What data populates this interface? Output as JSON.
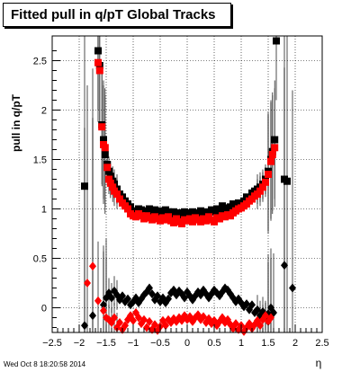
{
  "chart_data": {
    "type": "scatter",
    "title": "Fitted pull in q/pT  Global Tracks",
    "xlabel": "η",
    "ylabel": "pull in q/pT",
    "xlim": [
      -2.5,
      2.5
    ],
    "ylim": [
      -0.25,
      2.75
    ],
    "grid": true,
    "x_ticks": [
      -2.5,
      -2,
      -1.5,
      -1,
      -0.5,
      0,
      0.5,
      1,
      1.5,
      2,
      2.5
    ],
    "x_tick_labels": [
      "−2.5",
      "−2",
      "−1.5",
      "−1",
      "−0.5",
      "0",
      "0.5",
      "1",
      "1.5",
      "2",
      "2.5"
    ],
    "y_ticks": [
      0,
      0.5,
      1,
      1.5,
      2,
      2.5
    ],
    "y_tick_labels": [
      "0",
      "0.5",
      "1",
      "1.5",
      "2",
      "2.5"
    ],
    "series": [
      {
        "marker": "square",
        "color": "#000000",
        "points": [
          [
            -1.65,
            2.6
          ],
          [
            -1.62,
            2.45
          ],
          [
            -1.58,
            1.85
          ],
          [
            -1.55,
            1.7
          ],
          [
            -1.52,
            1.55
          ],
          [
            -1.48,
            1.45
          ],
          [
            -1.45,
            1.38
          ],
          [
            -1.42,
            1.33
          ],
          [
            -1.38,
            1.28
          ],
          [
            -1.35,
            1.25
          ],
          [
            -1.3,
            1.2
          ],
          [
            -1.25,
            1.15
          ],
          [
            -1.2,
            1.12
          ],
          [
            -1.15,
            1.08
          ],
          [
            -1.1,
            1.05
          ],
          [
            -1.05,
            1.02
          ],
          [
            -1.0,
            0.98
          ],
          [
            -0.95,
            0.97
          ],
          [
            -0.9,
            1.0
          ],
          [
            -0.85,
            0.99
          ],
          [
            -0.8,
            0.97
          ],
          [
            -0.75,
            0.98
          ],
          [
            -0.7,
            1.0
          ],
          [
            -0.65,
            0.96
          ],
          [
            -0.6,
            0.99
          ],
          [
            -0.55,
            0.95
          ],
          [
            -0.5,
            0.98
          ],
          [
            -0.45,
            0.96
          ],
          [
            -0.4,
            0.99
          ],
          [
            -0.35,
            0.97
          ],
          [
            -0.3,
            0.95
          ],
          [
            -0.25,
            0.97
          ],
          [
            -0.2,
            0.94
          ],
          [
            -0.15,
            0.96
          ],
          [
            -0.1,
            0.93
          ],
          [
            -0.05,
            0.97
          ],
          [
            0.0,
            0.96
          ],
          [
            0.05,
            0.94
          ],
          [
            0.1,
            0.97
          ],
          [
            0.15,
            0.95
          ],
          [
            0.2,
            0.96
          ],
          [
            0.25,
            0.98
          ],
          [
            0.3,
            0.95
          ],
          [
            0.35,
            0.97
          ],
          [
            0.4,
            0.96
          ],
          [
            0.45,
            0.99
          ],
          [
            0.5,
            0.97
          ],
          [
            0.55,
            1.0
          ],
          [
            0.6,
            0.98
          ],
          [
            0.65,
            1.03
          ],
          [
            0.7,
            0.99
          ],
          [
            0.75,
            1.01
          ],
          [
            0.8,
            1.02
          ],
          [
            0.85,
            1.05
          ],
          [
            0.9,
            1.0
          ],
          [
            0.95,
            1.06
          ],
          [
            1.0,
            1.04
          ],
          [
            1.05,
            1.08
          ],
          [
            1.1,
            1.12
          ],
          [
            1.15,
            1.1
          ],
          [
            1.2,
            1.16
          ],
          [
            1.25,
            1.18
          ],
          [
            1.3,
            1.2
          ],
          [
            1.35,
            1.22
          ],
          [
            1.4,
            1.25
          ],
          [
            1.45,
            1.3
          ],
          [
            1.5,
            1.38
          ],
          [
            1.55,
            1.5
          ],
          [
            1.58,
            1.58
          ],
          [
            1.62,
            1.7
          ],
          [
            1.65,
            2.7
          ],
          [
            -1.9,
            1.23
          ],
          [
            1.8,
            1.3
          ],
          [
            1.85,
            1.28
          ]
        ]
      },
      {
        "marker": "square",
        "color": "#ff0000",
        "points": [
          [
            -1.65,
            2.48
          ],
          [
            -1.62,
            2.4
          ],
          [
            -1.58,
            1.83
          ],
          [
            -1.55,
            1.65
          ],
          [
            -1.52,
            1.62
          ],
          [
            -1.48,
            1.42
          ],
          [
            -1.45,
            1.3
          ],
          [
            -1.42,
            1.26
          ],
          [
            -1.38,
            1.22
          ],
          [
            -1.35,
            1.18
          ],
          [
            -1.3,
            1.15
          ],
          [
            -1.25,
            1.1
          ],
          [
            -1.2,
            1.06
          ],
          [
            -1.15,
            1.03
          ],
          [
            -1.1,
            1.0
          ],
          [
            -1.05,
            0.95
          ],
          [
            -1.0,
            0.93
          ],
          [
            -0.95,
            0.92
          ],
          [
            -0.9,
            0.95
          ],
          [
            -0.85,
            0.93
          ],
          [
            -0.8,
            0.9
          ],
          [
            -0.75,
            0.93
          ],
          [
            -0.7,
            0.91
          ],
          [
            -0.65,
            0.89
          ],
          [
            -0.6,
            0.92
          ],
          [
            -0.55,
            0.9
          ],
          [
            -0.5,
            0.88
          ],
          [
            -0.45,
            0.91
          ],
          [
            -0.4,
            0.89
          ],
          [
            -0.35,
            0.92
          ],
          [
            -0.3,
            0.88
          ],
          [
            -0.25,
            0.86
          ],
          [
            -0.2,
            0.9
          ],
          [
            -0.15,
            0.87
          ],
          [
            -0.1,
            0.85
          ],
          [
            -0.05,
            0.89
          ],
          [
            0.0,
            0.88
          ],
          [
            0.05,
            0.9
          ],
          [
            0.1,
            0.87
          ],
          [
            0.15,
            0.91
          ],
          [
            0.2,
            0.89
          ],
          [
            0.25,
            0.87
          ],
          [
            0.3,
            0.9
          ],
          [
            0.35,
            0.88
          ],
          [
            0.4,
            0.92
          ],
          [
            0.45,
            0.89
          ],
          [
            0.5,
            0.87
          ],
          [
            0.55,
            0.91
          ],
          [
            0.6,
            0.9
          ],
          [
            0.65,
            0.93
          ],
          [
            0.7,
            0.92
          ],
          [
            0.75,
            0.94
          ],
          [
            0.8,
            0.93
          ],
          [
            0.85,
            0.96
          ],
          [
            0.9,
            0.98
          ],
          [
            0.95,
            1.0
          ],
          [
            1.0,
            1.01
          ],
          [
            1.05,
            1.03
          ],
          [
            1.1,
            1.05
          ],
          [
            1.15,
            1.08
          ],
          [
            1.2,
            1.1
          ],
          [
            1.25,
            1.13
          ],
          [
            1.3,
            1.15
          ],
          [
            1.35,
            1.18
          ],
          [
            1.4,
            1.22
          ],
          [
            1.45,
            1.27
          ],
          [
            1.5,
            1.35
          ],
          [
            1.55,
            1.48
          ],
          [
            1.58,
            1.55
          ],
          [
            1.62,
            1.62
          ]
        ]
      },
      {
        "marker": "diamond",
        "color": "#000000",
        "points": [
          [
            -1.75,
            -0.08
          ],
          [
            -1.55,
            0.03
          ],
          [
            -1.5,
            0.1
          ],
          [
            -1.45,
            0.15
          ],
          [
            -1.4,
            0.1
          ],
          [
            -1.35,
            0.17
          ],
          [
            -1.3,
            0.13
          ],
          [
            -1.25,
            0.08
          ],
          [
            -1.2,
            0.12
          ],
          [
            -1.15,
            0.06
          ],
          [
            -1.1,
            0.09
          ],
          [
            -1.05,
            0.03
          ],
          [
            -1.0,
            0.06
          ],
          [
            -0.95,
            0.1
          ],
          [
            -0.9,
            0.05
          ],
          [
            -0.85,
            0.09
          ],
          [
            -0.8,
            0.13
          ],
          [
            -0.75,
            0.16
          ],
          [
            -0.7,
            0.2
          ],
          [
            -0.65,
            0.14
          ],
          [
            -0.6,
            0.08
          ],
          [
            -0.55,
            0.12
          ],
          [
            -0.5,
            0.06
          ],
          [
            -0.45,
            0.1
          ],
          [
            -0.4,
            0.05
          ],
          [
            -0.35,
            0.09
          ],
          [
            -0.3,
            0.15
          ],
          [
            -0.25,
            0.18
          ],
          [
            -0.2,
            0.13
          ],
          [
            -0.15,
            0.17
          ],
          [
            -0.1,
            0.14
          ],
          [
            -0.05,
            0.1
          ],
          [
            0.0,
            0.16
          ],
          [
            0.05,
            0.12
          ],
          [
            0.1,
            0.08
          ],
          [
            0.15,
            0.12
          ],
          [
            0.2,
            0.16
          ],
          [
            0.25,
            0.13
          ],
          [
            0.3,
            0.18
          ],
          [
            0.35,
            0.14
          ],
          [
            0.4,
            0.1
          ],
          [
            0.45,
            0.14
          ],
          [
            0.5,
            0.18
          ],
          [
            0.55,
            0.15
          ],
          [
            0.6,
            0.12
          ],
          [
            0.65,
            0.16
          ],
          [
            0.7,
            0.2
          ],
          [
            0.75,
            0.18
          ],
          [
            0.8,
            0.14
          ],
          [
            0.85,
            0.1
          ],
          [
            0.9,
            0.06
          ],
          [
            0.95,
            0.09
          ],
          [
            1.0,
            0.05
          ],
          [
            1.05,
            0.01
          ],
          [
            1.1,
            0.04
          ],
          [
            1.15,
            -0.02
          ],
          [
            1.2,
            0.03
          ],
          [
            1.25,
            -0.05
          ],
          [
            1.3,
            -0.02
          ],
          [
            1.35,
            -0.08
          ],
          [
            1.4,
            -0.04
          ],
          [
            1.45,
            -0.1
          ],
          [
            1.5,
            -0.06
          ],
          [
            1.55,
            0.0
          ],
          [
            1.6,
            -0.05
          ],
          [
            1.8,
            0.43
          ],
          [
            1.95,
            0.2
          ],
          [
            -1.9,
            -0.18
          ]
        ]
      },
      {
        "marker": "diamond",
        "color": "#ff0000",
        "points": [
          [
            -1.85,
            0.25
          ],
          [
            -1.75,
            0.42
          ],
          [
            -1.65,
            0.07
          ],
          [
            -1.55,
            -0.03
          ],
          [
            -1.5,
            -0.1
          ],
          [
            -1.45,
            -0.12
          ],
          [
            -1.4,
            -0.15
          ],
          [
            -1.35,
            -0.1
          ],
          [
            -1.3,
            -0.2
          ],
          [
            -1.25,
            -0.15
          ],
          [
            -1.2,
            -0.22
          ],
          [
            -1.15,
            -0.18
          ],
          [
            -1.1,
            -0.12
          ],
          [
            -1.05,
            -0.08
          ],
          [
            -1.0,
            -0.13
          ],
          [
            -0.95,
            -0.05
          ],
          [
            -0.9,
            -0.1
          ],
          [
            -0.85,
            -0.16
          ],
          [
            -0.8,
            -0.12
          ],
          [
            -0.75,
            -0.2
          ],
          [
            -0.7,
            -0.14
          ],
          [
            -0.65,
            -0.22
          ],
          [
            -0.6,
            -0.17
          ],
          [
            -0.55,
            -0.23
          ],
          [
            -0.5,
            -0.19
          ],
          [
            -0.45,
            -0.13
          ],
          [
            -0.4,
            -0.18
          ],
          [
            -0.35,
            -0.12
          ],
          [
            -0.3,
            -0.15
          ],
          [
            -0.25,
            -0.11
          ],
          [
            -0.2,
            -0.14
          ],
          [
            -0.15,
            -0.1
          ],
          [
            -0.1,
            -0.13
          ],
          [
            -0.05,
            -0.08
          ],
          [
            0.0,
            -0.12
          ],
          [
            0.05,
            -0.09
          ],
          [
            0.1,
            -0.14
          ],
          [
            0.15,
            -0.1
          ],
          [
            0.2,
            -0.07
          ],
          [
            0.25,
            -0.12
          ],
          [
            0.3,
            -0.09
          ],
          [
            0.35,
            -0.15
          ],
          [
            0.4,
            -0.11
          ],
          [
            0.45,
            -0.16
          ],
          [
            0.5,
            -0.13
          ],
          [
            0.55,
            -0.18
          ],
          [
            0.6,
            -0.14
          ],
          [
            0.65,
            -0.1
          ],
          [
            0.7,
            -0.15
          ],
          [
            0.75,
            -0.12
          ],
          [
            0.8,
            -0.17
          ],
          [
            0.85,
            -0.21
          ],
          [
            0.9,
            -0.16
          ],
          [
            0.95,
            -0.22
          ],
          [
            1.0,
            -0.18
          ],
          [
            1.05,
            -0.24
          ],
          [
            1.1,
            -0.2
          ],
          [
            1.15,
            -0.16
          ],
          [
            1.2,
            -0.21
          ],
          [
            1.25,
            -0.17
          ],
          [
            1.3,
            -0.13
          ],
          [
            1.35,
            -0.18
          ],
          [
            1.4,
            -0.12
          ],
          [
            1.45,
            -0.08
          ],
          [
            1.5,
            -0.14
          ],
          [
            1.55,
            -0.1
          ]
        ]
      }
    ]
  },
  "footer": {
    "timestamp": "Wed Oct  8 18:20:58 2014"
  }
}
